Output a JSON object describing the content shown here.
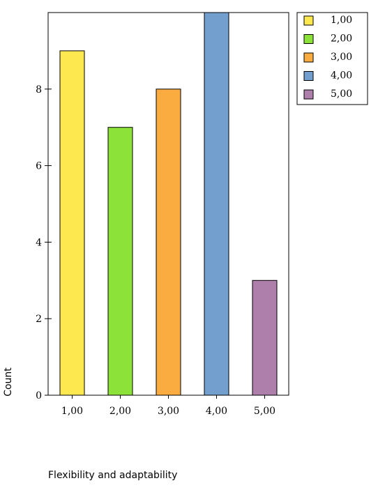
{
  "chart_data": {
    "type": "bar",
    "categories": [
      "1,00",
      "2,00",
      "3,00",
      "4,00",
      "5,00"
    ],
    "values": [
      9,
      7,
      8,
      10,
      3
    ],
    "colors": [
      "#fde84f",
      "#8de23a",
      "#fbac41",
      "#739fcf",
      "#ad7faa"
    ],
    "xlabel": "Flexibility and adaptability",
    "ylabel": "Count",
    "ylim": [
      0,
      10
    ],
    "yticks": [
      "0",
      "2",
      "4",
      "6",
      "8"
    ],
    "ytick_values": [
      0,
      2,
      4,
      6,
      8
    ],
    "legend": {
      "placement": "top-right",
      "entries": [
        "1,00",
        "2,00",
        "3,00",
        "4,00",
        "5,00"
      ]
    },
    "grid": false
  }
}
